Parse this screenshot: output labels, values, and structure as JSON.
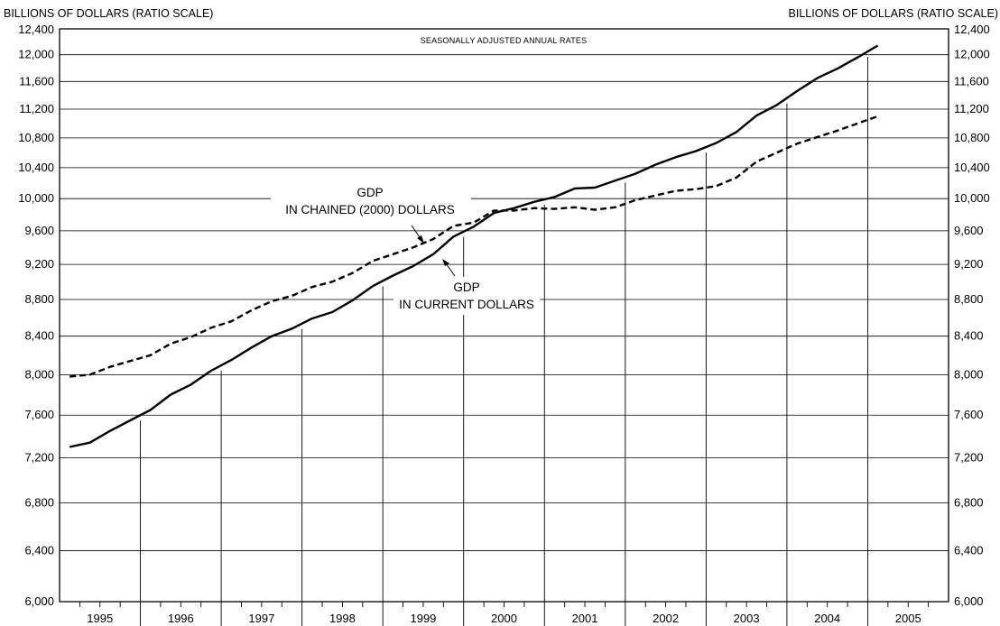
{
  "chart_data": {
    "type": "line",
    "left_axis_title": "BILLIONS OF DOLLARS (RATIO SCALE)",
    "right_axis_title": "BILLIONS OF DOLLARS (RATIO SCALE)",
    "note": "SEASONALLY ADJUSTED ANNUAL RATES",
    "y_scale": "log",
    "ylim": [
      6000,
      12400
    ],
    "y_ticks": [
      6000,
      6400,
      6800,
      7200,
      7600,
      8000,
      8400,
      8800,
      9200,
      9600,
      10000,
      10400,
      10800,
      11200,
      11600,
      12000,
      12400
    ],
    "y_tick_labels": [
      "6,000",
      "6,400",
      "6,800",
      "7,200",
      "7,600",
      "8,000",
      "8,400",
      "8,800",
      "9,200",
      "9,600",
      "10,000",
      "10,400",
      "10,800",
      "11,200",
      "11,600",
      "12,000",
      "12,400"
    ],
    "x_range": [
      1995.0,
      2006.0
    ],
    "years": [
      "1995",
      "1996",
      "1997",
      "1998",
      "1999",
      "2000",
      "2001",
      "2002",
      "2003",
      "2004",
      "2005"
    ],
    "series": [
      {
        "name": "GDP IN CURRENT DOLLARS",
        "style": "solid",
        "x": [
          1995.125,
          1995.375,
          1995.625,
          1995.875,
          1996.125,
          1996.375,
          1996.625,
          1996.875,
          1997.125,
          1997.375,
          1997.625,
          1997.875,
          1998.125,
          1998.375,
          1998.625,
          1998.875,
          1999.125,
          1999.375,
          1999.625,
          1999.875,
          2000.125,
          2000.375,
          2000.625,
          2000.875,
          2001.125,
          2001.375,
          2001.625,
          2001.875,
          2002.125,
          2002.375,
          2002.625,
          2002.875,
          2003.125,
          2003.375,
          2003.625,
          2003.875,
          2004.125,
          2004.375,
          2004.625,
          2004.875,
          2005.125
        ],
        "values": [
          7300,
          7340,
          7450,
          7550,
          7650,
          7800,
          7900,
          8040,
          8150,
          8280,
          8400,
          8480,
          8590,
          8660,
          8790,
          8950,
          9070,
          9180,
          9320,
          9530,
          9650,
          9820,
          9880,
          9960,
          10020,
          10130,
          10140,
          10230,
          10320,
          10440,
          10540,
          10620,
          10730,
          10880,
          11110,
          11260,
          11460,
          11650,
          11790,
          11960,
          12140
        ]
      },
      {
        "name": "GDP IN CHAINED (2000) DOLLARS",
        "style": "dashed",
        "x": [
          1995.125,
          1995.375,
          1995.625,
          1995.875,
          1996.125,
          1996.375,
          1996.625,
          1996.875,
          1997.125,
          1997.375,
          1997.625,
          1997.875,
          1998.125,
          1998.375,
          1998.625,
          1998.875,
          1999.125,
          1999.375,
          1999.625,
          1999.875,
          2000.125,
          2000.375,
          2000.625,
          2000.875,
          2001.125,
          2001.375,
          2001.625,
          2001.875,
          2002.125,
          2002.375,
          2002.625,
          2002.875,
          2003.125,
          2003.375,
          2003.625,
          2003.875,
          2004.125,
          2004.375,
          2004.625,
          2004.875,
          2005.125
        ],
        "values": [
          7980,
          8000,
          8080,
          8140,
          8200,
          8320,
          8390,
          8490,
          8560,
          8680,
          8780,
          8840,
          8940,
          9000,
          9100,
          9240,
          9320,
          9400,
          9500,
          9660,
          9700,
          9850,
          9850,
          9880,
          9870,
          9890,
          9860,
          9890,
          9980,
          10040,
          10100,
          10120,
          10160,
          10270,
          10480,
          10600,
          10720,
          10810,
          10900,
          11000,
          11100
        ]
      }
    ],
    "annotations": {
      "chained": [
        "GDP",
        "IN CHAINED (2000) DOLLARS"
      ],
      "current": [
        "GDP",
        "IN CURRENT DOLLARS"
      ]
    },
    "grid": true
  }
}
